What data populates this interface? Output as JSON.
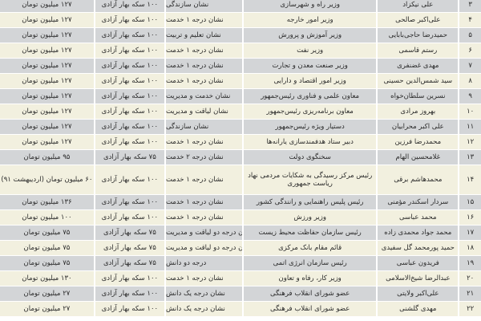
{
  "rows": [
    {
      "num": "۳",
      "name": "علی نیکزاد",
      "position": "وزیر راه و شهرسازی",
      "medal": "نشان سازندگی",
      "coins": "۱۰۰ سکه بهار آزادی",
      "cash": "۱۲۷ میلیون تومان"
    },
    {
      "num": "۴",
      "name": "علی‌اکبر صالحی",
      "position": "وزیر امور خارجه",
      "medal": "نشان درجه ۱ خدمت",
      "coins": "۱۰۰ سکه بهار آزادی",
      "cash": "۱۲۷ میلیون تومان"
    },
    {
      "num": "۵",
      "name": "حمیدرضا حاجی‌بابایی",
      "position": "وزیر آموزش و پرورش",
      "medal": "نشان تعلیم و تربیت",
      "coins": "۱۰۰ سکه بهار آزادی",
      "cash": "۱۲۷ میلیون تومان"
    },
    {
      "num": "۶",
      "name": "رستم قاسمی",
      "position": "وزیر نفت",
      "medal": "نشان درجه ۱ خدمت",
      "coins": "۱۰۰ سکه بهار آزادی",
      "cash": "۱۲۷ میلیون تومان"
    },
    {
      "num": "۷",
      "name": "مهدی غضنفری",
      "position": "وزیر صنعت معدن و تجارت",
      "medal": "نشان درجه ۱ خدمت",
      "coins": "۱۰۰ سکه بهار آزادی",
      "cash": "۱۲۷ میلیون تومان"
    },
    {
      "num": "۸",
      "name": "سید شمس‌الدین حسینی",
      "position": "وزیر امور اقتصاد و دارایی",
      "medal": "نشان درجه ۱ خدمت",
      "coins": "۱۰۰ سکه بهار آزادی",
      "cash": "۱۲۷ میلیون تومان"
    },
    {
      "num": "۹",
      "name": "نسرین سلطان‌خواه",
      "position": "معاون علمی و فناوری رئیس‌جمهور",
      "medal": "نشان خدمت و مدیریت",
      "coins": "۱۰۰ سکه بهار آزادی",
      "cash": "۱۲۷ میلیون تومان"
    },
    {
      "num": "۱۰",
      "name": "بهروز مرادی",
      "position": "معاون برنامه‌ریزی رئیس‌جمهور",
      "medal": "نشان لیاقت و مدیریت",
      "coins": "۱۰۰ سکه بهار آزادی",
      "cash": "۱۲۷ میلیون تومان"
    },
    {
      "num": "۱۱",
      "name": "علی اکبر محرابیان",
      "position": "دستیار ویژه رئیس‌جمهور",
      "medal": "نشان سازندگی",
      "coins": "۱۰۰ سکه بهار آزادی",
      "cash": "۱۲۷ میلیون تومان"
    },
    {
      "num": "۱۲",
      "name": "محمدرضا فرزین",
      "position": "دبیر ستاد هدفمندسازی یارانه‌ها",
      "medal": "نشان درجه ۱ خدمت",
      "coins": "۱۰۰ سکه بهار آزادی",
      "cash": "۱۲۷ میلیون تومان"
    },
    {
      "num": "۱۳",
      "name": "غلامحسین الهام",
      "position": "سخنگوی دولت",
      "medal": "نشان درجه ۲ خدمت",
      "coins": "۷۵ سکه بهار آزادی",
      "cash": "۹۵ میلیون تومان"
    },
    {
      "num": "۱۴",
      "name": "محمدهاشم برقی",
      "position": "رئیس مرکز رسیدگی به شکایات مردمی نهاد ریاست جمهوری",
      "medal": "نشان درجه ۱ خدمت",
      "coins": "۱۰۰ سکه بهار آزادی",
      "cash": "۶۰ میلیون تومان (اردیبهشت ۹۱)",
      "tall": true
    },
    {
      "num": "۱۵",
      "name": "سردار اسکندر مؤمنی",
      "position": "رئیس پلیس راهنمایی و رانندگی کشور",
      "medal": "نشان درجه ۱ خدمت",
      "coins": "۱۰۰ سکه بهار آزادی",
      "cash": "۱۳۶ میلیون تومان"
    },
    {
      "num": "۱۶",
      "name": "محمد عباسی",
      "position": "وزیر ورزش",
      "medal": "نشان درجه ۱ خدمت",
      "coins": "۱۰۰ سکه بهار آزادی",
      "cash": "۱۰۰ میلیون تومان"
    },
    {
      "num": "۱۷",
      "name": "محمد جواد محمدی زاده",
      "position": "رئیس سازمان حفاظت محیط زیست",
      "medal": "نشان درجه دو لیاقت و مدیریت",
      "coins": "۷۵ سکه بهار آزادی",
      "cash": "۷۵ میلیون تومان"
    },
    {
      "num": "۱۸",
      "name": "حمید پورمحمد گل سفیدی",
      "position": "قائم مقام بانک مرکزی",
      "medal": "نشان درجه دو لیاقت و مدیریت",
      "coins": "۷۵ سکه بهار آزادی",
      "cash": "۷۵ میلیون تومان"
    },
    {
      "num": "۱۹",
      "name": "فریدون عباسی",
      "position": "رئیس سازمان انرژی اتمی",
      "medal": "درجه دو دانش",
      "coins": "۷۵ سکه بهار آزادی",
      "cash": "۷۵ میلیون تومان"
    },
    {
      "num": "۲۰",
      "name": "عبدالرضا شیخ‌الاسلامی",
      "position": "وزیر کار، رفاه و تعاون",
      "medal": "نشان درجه ۱ خدمت",
      "coins": "۱۰۰ سکه بهار آزادی",
      "cash": "۱۳۰ میلیون تومان"
    },
    {
      "num": "۲۱",
      "name": "علی‌اکبر ولایتی",
      "position": "عضو شورای انقلاب فرهنگی",
      "medal": "نشان درجه یک دانش",
      "coins": "۱۰۰ سکه بهار آزادی",
      "cash": "۲۷ میلیون تومان"
    },
    {
      "num": "۲۲",
      "name": "مهدی گلشنی",
      "position": "عضو شورای انقلاب فرهنگی",
      "medal": "نشان درجه یک دانش",
      "coins": "۱۰۰ سکه بهار آزادی",
      "cash": "۲۷ میلیون تومان"
    }
  ],
  "colors": {
    "row_a": "#d3d5d7",
    "row_b": "#f2f0df",
    "text": "#2a2a2a"
  }
}
